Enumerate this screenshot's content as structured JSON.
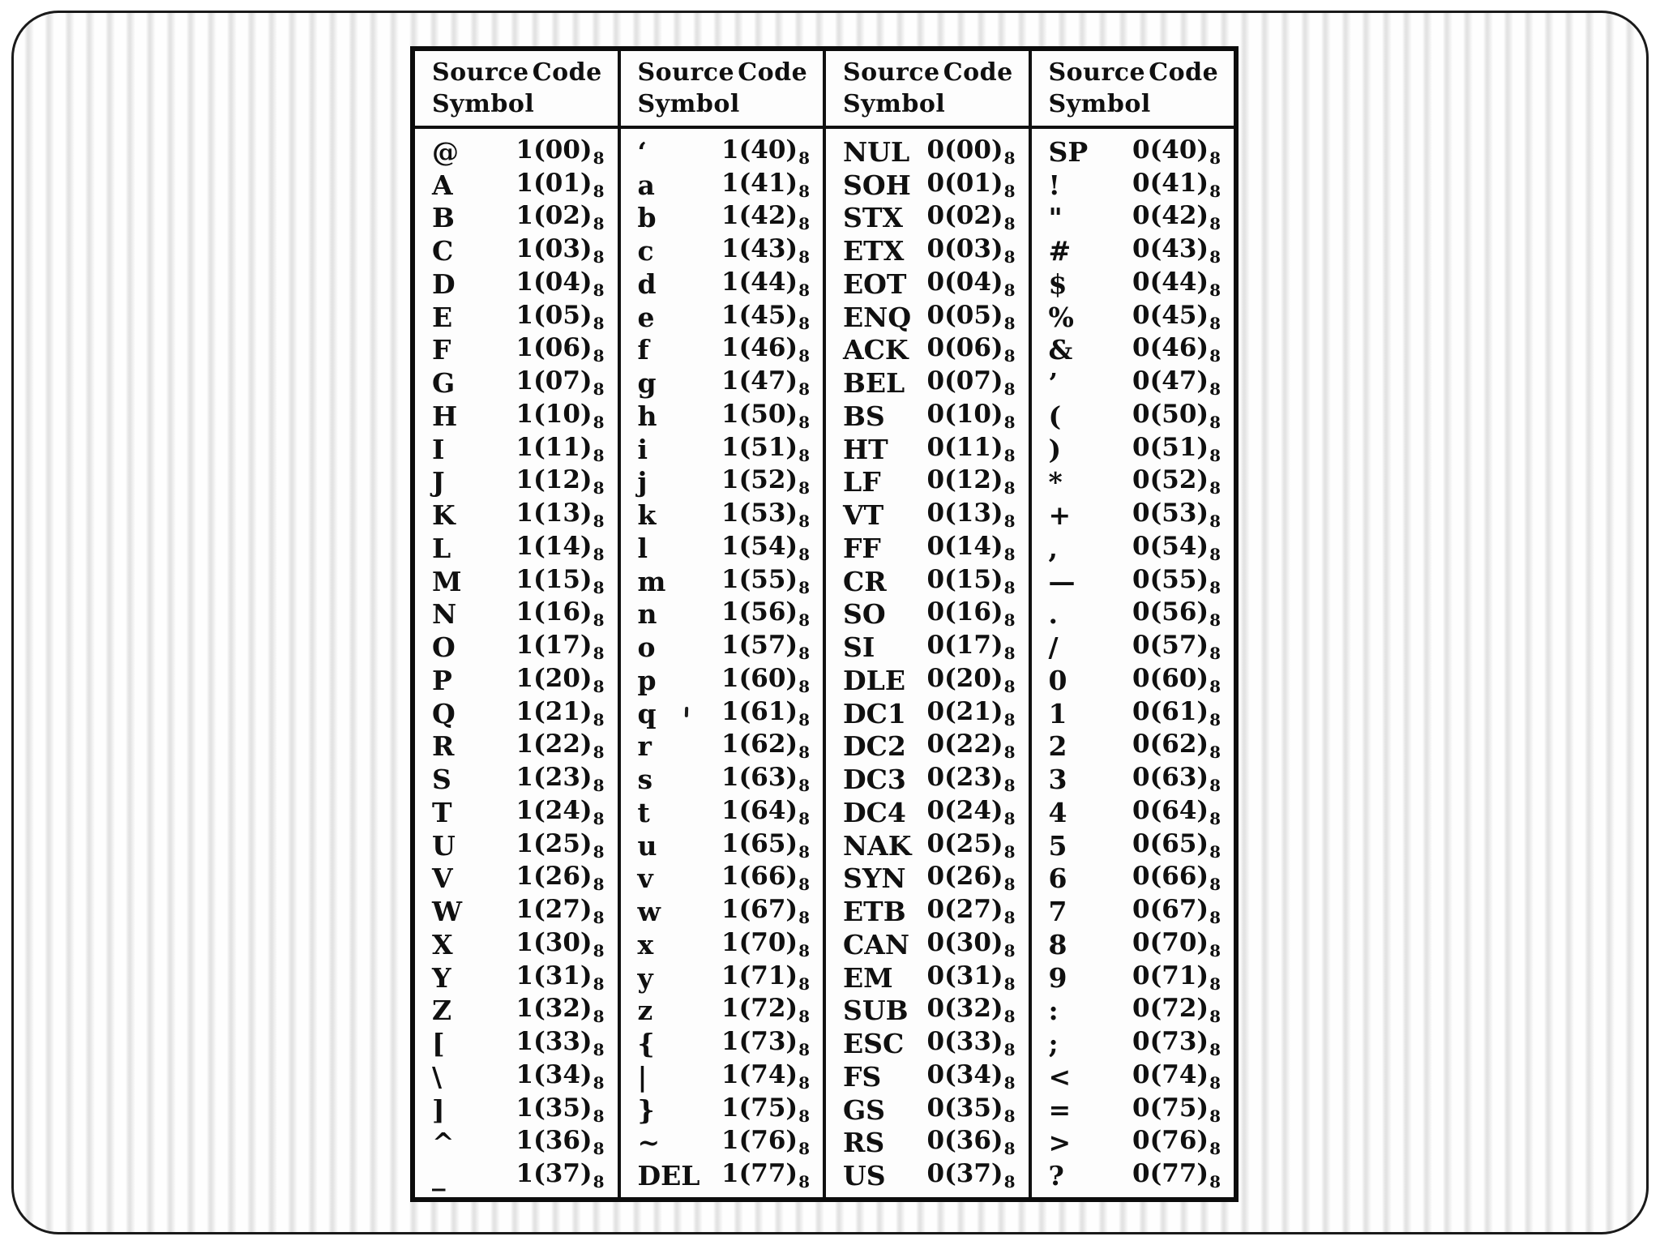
{
  "table": {
    "headers": {
      "source": "Source",
      "symbol": "Symbol",
      "code": "Code"
    },
    "radix": "8",
    "column_groups": [
      {
        "rows": [
          {
            "symbol": "@",
            "code": "1(00)"
          },
          {
            "symbol": "A",
            "code": "1(01)"
          },
          {
            "symbol": "B",
            "code": "1(02)"
          },
          {
            "symbol": "C",
            "code": "1(03)"
          },
          {
            "symbol": "D",
            "code": "1(04)"
          },
          {
            "symbol": "E",
            "code": "1(05)"
          },
          {
            "symbol": "F",
            "code": "1(06)"
          },
          {
            "symbol": "G",
            "code": "1(07)"
          },
          {
            "symbol": "H",
            "code": "1(10)"
          },
          {
            "symbol": "I",
            "code": "1(11)"
          },
          {
            "symbol": "J",
            "code": "1(12)"
          },
          {
            "symbol": "K",
            "code": "1(13)"
          },
          {
            "symbol": "L",
            "code": "1(14)"
          },
          {
            "symbol": "M",
            "code": "1(15)"
          },
          {
            "symbol": "N",
            "code": "1(16)"
          },
          {
            "symbol": "O",
            "code": "1(17)"
          },
          {
            "symbol": "P",
            "code": "1(20)"
          },
          {
            "symbol": "Q",
            "code": "1(21)"
          },
          {
            "symbol": "R",
            "code": "1(22)"
          },
          {
            "symbol": "S",
            "code": "1(23)"
          },
          {
            "symbol": "T",
            "code": "1(24)"
          },
          {
            "symbol": "U",
            "code": "1(25)"
          },
          {
            "symbol": "V",
            "code": "1(26)"
          },
          {
            "symbol": "W",
            "code": "1(27)"
          },
          {
            "symbol": "X",
            "code": "1(30)"
          },
          {
            "symbol": "Y",
            "code": "1(31)"
          },
          {
            "symbol": "Z",
            "code": "1(32)"
          },
          {
            "symbol": "[",
            "code": "1(33)"
          },
          {
            "symbol": "\\",
            "code": "1(34)"
          },
          {
            "symbol": "]",
            "code": "1(35)"
          },
          {
            "symbol": "^",
            "code": "1(36)"
          },
          {
            "symbol": "_",
            "code": "1(37)"
          }
        ]
      },
      {
        "rows": [
          {
            "symbol": "‘",
            "code": "1(40)"
          },
          {
            "symbol": "a",
            "code": "1(41)"
          },
          {
            "symbol": "b",
            "code": "1(42)"
          },
          {
            "symbol": "c",
            "code": "1(43)"
          },
          {
            "symbol": "d",
            "code": "1(44)"
          },
          {
            "symbol": "e",
            "code": "1(45)"
          },
          {
            "symbol": "f",
            "code": "1(46)"
          },
          {
            "symbol": "g",
            "code": "1(47)"
          },
          {
            "symbol": "h",
            "code": "1(50)"
          },
          {
            "symbol": "i",
            "code": "1(51)"
          },
          {
            "symbol": "j",
            "code": "1(52)"
          },
          {
            "symbol": "k",
            "code": "1(53)"
          },
          {
            "symbol": "l",
            "code": "1(54)"
          },
          {
            "symbol": "m",
            "code": "1(55)"
          },
          {
            "symbol": "n",
            "code": "1(56)"
          },
          {
            "symbol": "o",
            "code": "1(57)"
          },
          {
            "symbol": "p",
            "code": "1(60)"
          },
          {
            "symbol": "q",
            "code": "1(61)"
          },
          {
            "symbol": "r",
            "code": "1(62)"
          },
          {
            "symbol": "s",
            "code": "1(63)"
          },
          {
            "symbol": "t",
            "code": "1(64)"
          },
          {
            "symbol": "u",
            "code": "1(65)"
          },
          {
            "symbol": "v",
            "code": "1(66)"
          },
          {
            "symbol": "w",
            "code": "1(67)"
          },
          {
            "symbol": "x",
            "code": "1(70)"
          },
          {
            "symbol": "y",
            "code": "1(71)"
          },
          {
            "symbol": "z",
            "code": "1(72)"
          },
          {
            "symbol": "{",
            "code": "1(73)"
          },
          {
            "symbol": "|",
            "code": "1(74)"
          },
          {
            "symbol": "}",
            "code": "1(75)"
          },
          {
            "symbol": "~",
            "code": "1(76)"
          },
          {
            "symbol": "DEL",
            "code": "1(77)"
          }
        ]
      },
      {
        "rows": [
          {
            "symbol": "NUL",
            "code": "0(00)"
          },
          {
            "symbol": "SOH",
            "code": "0(01)"
          },
          {
            "symbol": "STX",
            "code": "0(02)"
          },
          {
            "symbol": "ETX",
            "code": "0(03)"
          },
          {
            "symbol": "EOT",
            "code": "0(04)"
          },
          {
            "symbol": "ENQ",
            "code": "0(05)"
          },
          {
            "symbol": "ACK",
            "code": "0(06)"
          },
          {
            "symbol": "BEL",
            "code": "0(07)"
          },
          {
            "symbol": "BS",
            "code": "0(10)"
          },
          {
            "symbol": "HT",
            "code": "0(11)"
          },
          {
            "symbol": "LF",
            "code": "0(12)"
          },
          {
            "symbol": "VT",
            "code": "0(13)"
          },
          {
            "symbol": "FF",
            "code": "0(14)"
          },
          {
            "symbol": "CR",
            "code": "0(15)"
          },
          {
            "symbol": "SO",
            "code": "0(16)"
          },
          {
            "symbol": "SI",
            "code": "0(17)"
          },
          {
            "symbol": "DLE",
            "code": "0(20)"
          },
          {
            "symbol": "DC1",
            "code": "0(21)"
          },
          {
            "symbol": "DC2",
            "code": "0(22)"
          },
          {
            "symbol": "DC3",
            "code": "0(23)"
          },
          {
            "symbol": "DC4",
            "code": "0(24)"
          },
          {
            "symbol": "NAK",
            "code": "0(25)"
          },
          {
            "symbol": "SYN",
            "code": "0(26)"
          },
          {
            "symbol": "ETB",
            "code": "0(27)"
          },
          {
            "symbol": "CAN",
            "code": "0(30)"
          },
          {
            "symbol": "EM",
            "code": "0(31)"
          },
          {
            "symbol": "SUB",
            "code": "0(32)"
          },
          {
            "symbol": "ESC",
            "code": "0(33)"
          },
          {
            "symbol": "FS",
            "code": "0(34)"
          },
          {
            "symbol": "GS",
            "code": "0(35)"
          },
          {
            "symbol": "RS",
            "code": "0(36)"
          },
          {
            "symbol": "US",
            "code": "0(37)"
          }
        ]
      },
      {
        "rows": [
          {
            "symbol": "SP",
            "code": "0(40)"
          },
          {
            "symbol": "!",
            "code": "0(41)"
          },
          {
            "symbol": "\"",
            "code": "0(42)"
          },
          {
            "symbol": "#",
            "code": "0(43)"
          },
          {
            "symbol": "$",
            "code": "0(44)"
          },
          {
            "symbol": "%",
            "code": "0(45)"
          },
          {
            "symbol": "&",
            "code": "0(46)"
          },
          {
            "symbol": "’",
            "code": "0(47)"
          },
          {
            "symbol": "(",
            "code": "0(50)"
          },
          {
            "symbol": ")",
            "code": "0(51)"
          },
          {
            "symbol": "*",
            "code": "0(52)"
          },
          {
            "symbol": "+",
            "code": "0(53)"
          },
          {
            "symbol": ",",
            "code": "0(54)"
          },
          {
            "symbol": "—",
            "code": "0(55)"
          },
          {
            "symbol": ".",
            "code": "0(56)"
          },
          {
            "symbol": "/",
            "code": "0(57)"
          },
          {
            "symbol": "0",
            "code": "0(60)"
          },
          {
            "symbol": "1",
            "code": "0(61)"
          },
          {
            "symbol": "2",
            "code": "0(62)"
          },
          {
            "symbol": "3",
            "code": "0(63)"
          },
          {
            "symbol": "4",
            "code": "0(64)"
          },
          {
            "symbol": "5",
            "code": "0(65)"
          },
          {
            "symbol": "6",
            "code": "0(66)"
          },
          {
            "symbol": "7",
            "code": "0(67)"
          },
          {
            "symbol": "8",
            "code": "0(70)"
          },
          {
            "symbol": "9",
            "code": "0(71)"
          },
          {
            "symbol": ":",
            "code": "0(72)"
          },
          {
            "symbol": ";",
            "code": "0(73)"
          },
          {
            "symbol": "<",
            "code": "0(74)"
          },
          {
            "symbol": "=",
            "code": "0(75)"
          },
          {
            "symbol": ">",
            "code": "0(76)"
          },
          {
            "symbol": "?",
            "code": "0(77)"
          }
        ]
      }
    ]
  }
}
